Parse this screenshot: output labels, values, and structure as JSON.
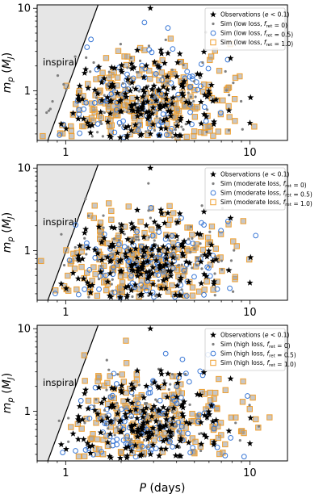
{
  "chart_data": [
    {
      "type": "scatter",
      "xscale": "log",
      "yscale": "log",
      "xlim": [
        0.7,
        16
      ],
      "ylim": [
        0.25,
        11
      ],
      "xticks": [
        1,
        10
      ],
      "yticks": [
        1,
        10
      ],
      "xtick_labels": [
        "1",
        "10"
      ],
      "ytick_labels": [
        "1",
        "10"
      ],
      "xlabel": "",
      "ylabel": "m_p (M_J)",
      "region": {
        "label": "inspiral",
        "boundary": [
          [
            0.8,
            0.25
          ],
          [
            1.5,
            11
          ]
        ]
      },
      "legend_position": "top-right",
      "series": [
        {
          "name": "Observations (e < 0.1)",
          "marker": "star",
          "color": "#000000",
          "seed": 11,
          "count": 170
        },
        {
          "name": "Sim (low loss, f_ret = 0)",
          "marker": "dot",
          "color": "#7f7f7f",
          "seed": 12,
          "count": 120
        },
        {
          "name": "Sim (low loss, f_ret = 0.5)",
          "marker": "circle",
          "color": "#3a78d6",
          "seed": 13,
          "count": 90
        },
        {
          "name": "Sim (low loss, f_ret = 1.0)",
          "marker": "square",
          "color": "#f0a030",
          "seed": 14,
          "count": 230
        }
      ]
    },
    {
      "type": "scatter",
      "xscale": "log",
      "yscale": "log",
      "xlim": [
        0.7,
        16
      ],
      "ylim": [
        0.25,
        11
      ],
      "xticks": [
        1,
        10
      ],
      "yticks": [
        1,
        10
      ],
      "xtick_labels": [
        "1",
        "10"
      ],
      "ytick_labels": [
        "1",
        "10"
      ],
      "xlabel": "",
      "ylabel": "m_p (M_J)",
      "region": {
        "label": "inspiral",
        "boundary": [
          [
            0.8,
            0.25
          ],
          [
            1.5,
            11
          ]
        ]
      },
      "legend_position": "top-right",
      "series": [
        {
          "name": "Observations (e < 0.1)",
          "marker": "star",
          "color": "#000000",
          "seed": 11,
          "count": 170
        },
        {
          "name": "Sim (moderate loss, f_ret = 0)",
          "marker": "dot",
          "color": "#7f7f7f",
          "seed": 22,
          "count": 120
        },
        {
          "name": "Sim (moderate loss, f_ret = 0.5)",
          "marker": "circle",
          "color": "#3a78d6",
          "seed": 23,
          "count": 100
        },
        {
          "name": "Sim (moderate loss, f_ret = 1.0)",
          "marker": "square",
          "color": "#f0a030",
          "seed": 24,
          "count": 220
        }
      ]
    },
    {
      "type": "scatter",
      "xscale": "log",
      "yscale": "log",
      "xlim": [
        0.7,
        16
      ],
      "ylim": [
        0.25,
        11
      ],
      "xticks": [
        1,
        10
      ],
      "yticks": [
        1,
        10
      ],
      "xtick_labels": [
        "1",
        "10"
      ],
      "ytick_labels": [
        "1",
        "10"
      ],
      "xlabel": "P (days)",
      "ylabel": "m_p (M_J)",
      "region": {
        "label": "inspiral",
        "boundary": [
          [
            0.8,
            0.25
          ],
          [
            1.5,
            11
          ]
        ]
      },
      "legend_position": "top-right",
      "series": [
        {
          "name": "Observations (e < 0.1)",
          "marker": "star",
          "color": "#000000",
          "seed": 11,
          "count": 170
        },
        {
          "name": "Sim (high loss, f_ret = 0)",
          "marker": "dot",
          "color": "#7f7f7f",
          "seed": 32,
          "count": 110
        },
        {
          "name": "Sim (high loss, f_ret = 0.5)",
          "marker": "circle",
          "color": "#3a78d6",
          "seed": 33,
          "count": 110
        },
        {
          "name": "Sim (high loss, f_ret = 1.0)",
          "marker": "square",
          "color": "#f0a030",
          "seed": 34,
          "count": 200
        }
      ]
    }
  ]
}
